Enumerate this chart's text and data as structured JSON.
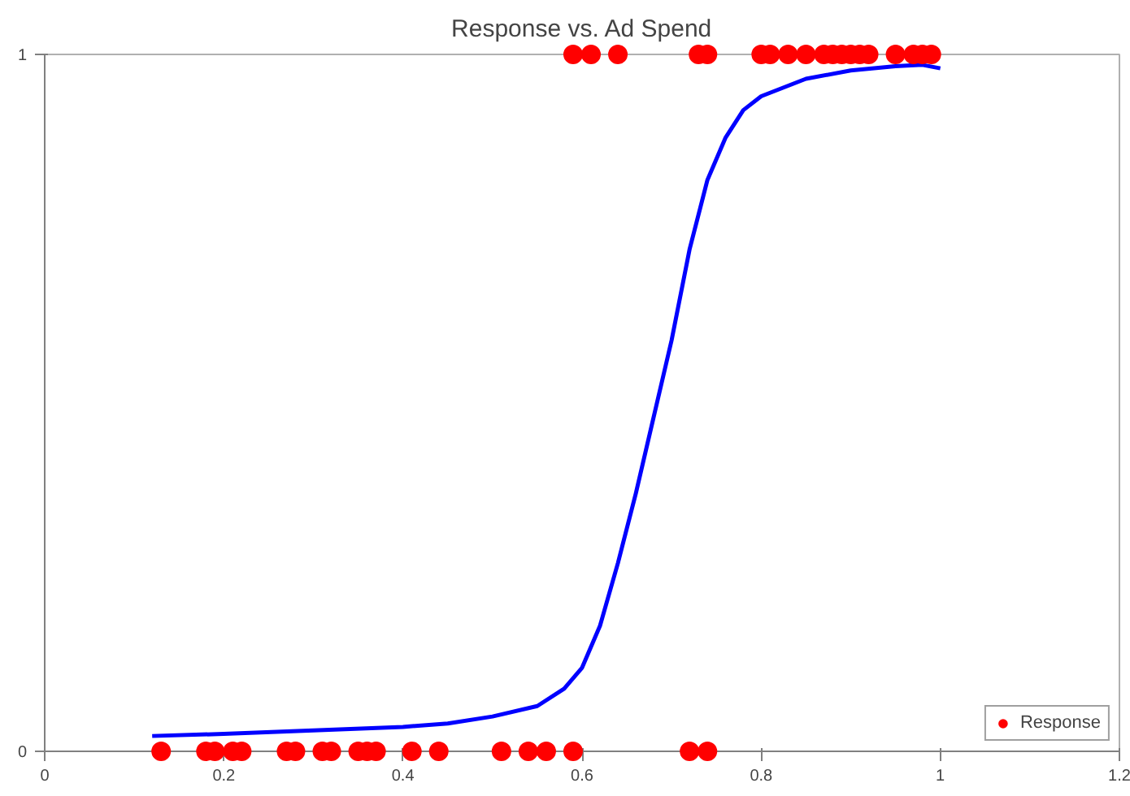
{
  "chart_data": {
    "type": "scatter",
    "title": "Response vs. Ad Spend",
    "xlim": [
      0,
      1.2
    ],
    "xticks": [
      0,
      0.2,
      0.4,
      0.6,
      0.8,
      1,
      1.2
    ],
    "ylim": [
      0,
      1
    ],
    "yticks": [
      0,
      1
    ],
    "grid": false,
    "legend": "bottom right",
    "series": [
      {
        "name": "Response",
        "marker": "circle",
        "color": "#ff0000",
        "x": [
          0.13,
          0.18,
          0.19,
          0.21,
          0.22,
          0.27,
          0.28,
          0.31,
          0.32,
          0.35,
          0.36,
          0.37,
          0.41,
          0.44,
          0.51,
          0.54,
          0.56,
          0.59,
          0.72,
          0.74,
          0.59,
          0.61,
          0.64,
          0.73,
          0.74,
          0.8,
          0.81,
          0.83,
          0.85,
          0.87,
          0.88,
          0.89,
          0.9,
          0.91,
          0.92,
          0.95,
          0.97,
          0.98,
          0.99
        ],
        "values": [
          0,
          0,
          0,
          0,
          0,
          0,
          0,
          0,
          0,
          0,
          0,
          0,
          0,
          0,
          0,
          0,
          0,
          0,
          0,
          0,
          1,
          1,
          1,
          1,
          1,
          1,
          1,
          1,
          1,
          1,
          1,
          1,
          1,
          1,
          1,
          1,
          1,
          1,
          1
        ]
      },
      {
        "type": "line",
        "color": "#0000ff",
        "line_style": "solid",
        "x": [
          0.12,
          0.2,
          0.3,
          0.4,
          0.45,
          0.5,
          0.55,
          0.58,
          0.6,
          0.62,
          0.64,
          0.66,
          0.68,
          0.7,
          0.72,
          0.74,
          0.76,
          0.78,
          0.8,
          0.85,
          0.9,
          0.95,
          0.98,
          1.0
        ],
        "values": [
          0.022,
          0.025,
          0.03,
          0.035,
          0.04,
          0.05,
          0.065,
          0.09,
          0.12,
          0.18,
          0.27,
          0.37,
          0.48,
          0.59,
          0.72,
          0.82,
          0.88,
          0.92,
          0.94,
          0.965,
          0.977,
          0.983,
          0.985,
          0.98
        ]
      }
    ]
  }
}
